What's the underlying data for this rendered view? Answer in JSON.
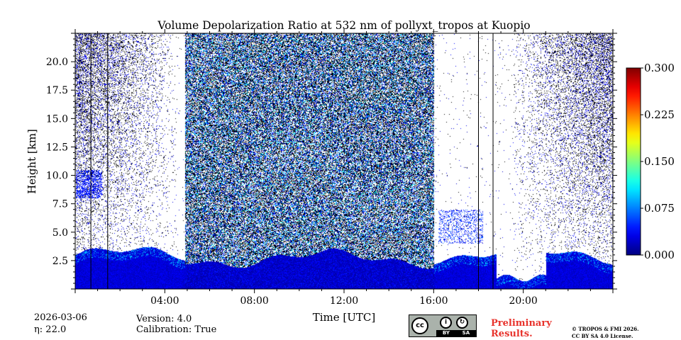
{
  "chart_data": {
    "type": "heatmap",
    "title": "Volume Depolarization Ratio at 532 nm of pollyxt_tropos at Kuopio",
    "xlabel": "Time [UTC]",
    "ylabel": "Height [km]",
    "xlim_hours": [
      0,
      24
    ],
    "ylim_km": [
      0,
      22.5
    ],
    "x_ticks": [
      {
        "h": 4,
        "label": "04:00"
      },
      {
        "h": 8,
        "label": "08:00"
      },
      {
        "h": 12,
        "label": "12:00"
      },
      {
        "h": 16,
        "label": "16:00"
      },
      {
        "h": 20,
        "label": "20:00"
      }
    ],
    "y_ticks": [
      {
        "v": 2.5,
        "label": "2.5"
      },
      {
        "v": 5.0,
        "label": "5.0"
      },
      {
        "v": 7.5,
        "label": "7.5"
      },
      {
        "v": 10.0,
        "label": "10.0"
      },
      {
        "v": 12.5,
        "label": "12.5"
      },
      {
        "v": 15.0,
        "label": "15.0"
      },
      {
        "v": 17.5,
        "label": "17.5"
      },
      {
        "v": 20.0,
        "label": "20.0"
      }
    ],
    "colorbar": {
      "range": [
        0.0,
        0.3
      ],
      "ticks": [
        {
          "v": 0.0,
          "label": "0.000"
        },
        {
          "v": 0.075,
          "label": "0.075"
        },
        {
          "v": 0.15,
          "label": "0.150"
        },
        {
          "v": 0.225,
          "label": "0.225"
        },
        {
          "v": 0.3,
          "label": "0.300"
        }
      ],
      "colormap": "jet"
    },
    "gap_lines_hours": [
      0.7,
      1.45,
      18.0,
      18.65
    ],
    "noise_band_hours": [
      4.9,
      16.0
    ],
    "sky_signal_layer_top_km": 3.5
  },
  "footer": {
    "date": "2026-03-06",
    "eta": "η: 22.0",
    "version": "Version: 4.0",
    "calibration": "Calibration: True",
    "preliminary": "Preliminary Results.",
    "copyright_line1": "© TROPOS & FMI 2026.",
    "copyright_line2": "CC BY SA 4.0 License.",
    "license_badge_by": "BY",
    "license_badge_sa": "SA",
    "license_badge_cc": "cc"
  }
}
